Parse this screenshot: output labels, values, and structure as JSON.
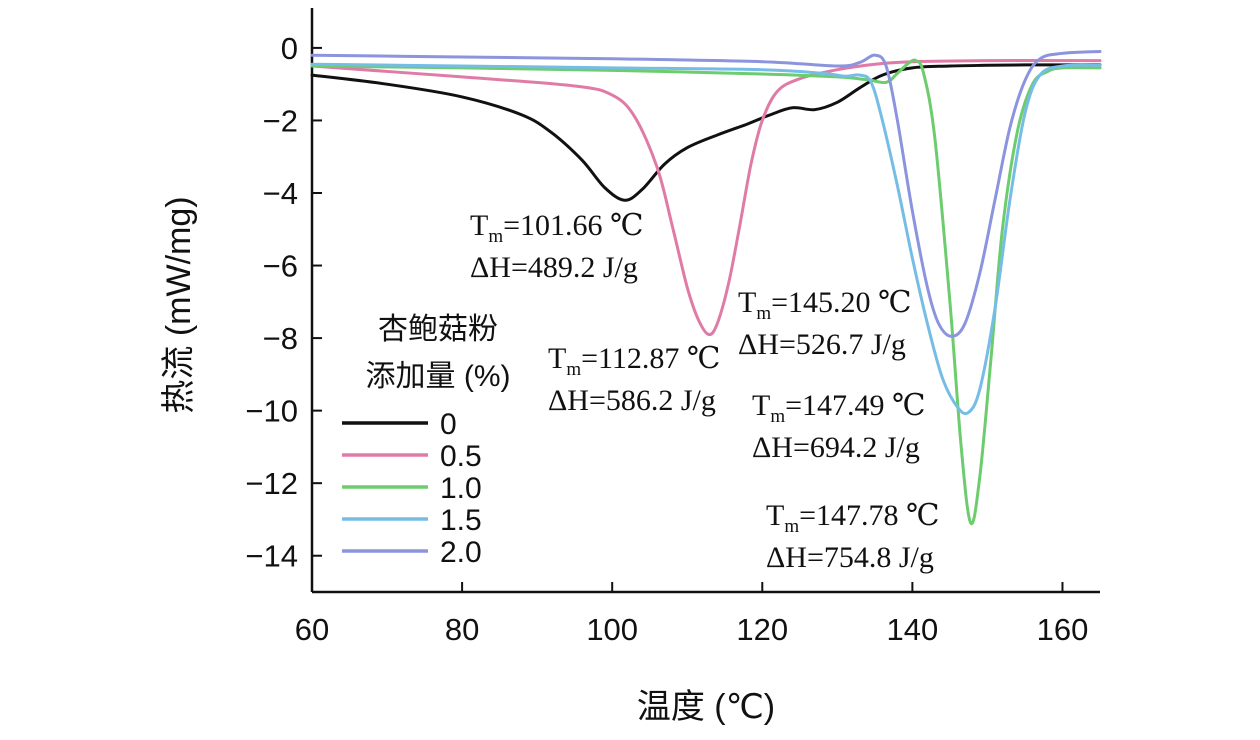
{
  "chart_data": {
    "type": "line",
    "title": "",
    "xlabel": "温度 (℃)",
    "ylabel": "热流 (mW/mg)",
    "xlim": [
      60,
      165
    ],
    "ylim": [
      -15,
      1.1
    ],
    "xticks": [
      60,
      80,
      100,
      120,
      140,
      160
    ],
    "yticks": [
      0,
      -2,
      -4,
      -6,
      -8,
      -10,
      -12,
      -14
    ],
    "xtick_labels": [
      "60",
      "80",
      "100",
      "120",
      "140",
      "160"
    ],
    "ytick_labels": [
      "0",
      "−2",
      "−4",
      "−6",
      "−8",
      "−10",
      "−12",
      "−14"
    ],
    "legend": {
      "title_line1": "杏鲍菇粉",
      "title_line2": "添加量 (%)",
      "placement": "left-center"
    },
    "series": [
      {
        "name": "0",
        "color": "#111111",
        "x": [
          60,
          70,
          80,
          88,
          92,
          96,
          99,
          101.66,
          104,
          107,
          110,
          114,
          118,
          121,
          124,
          127,
          130,
          133,
          136,
          140,
          145,
          150,
          155,
          160,
          165
        ],
        "y": [
          -0.75,
          -1.0,
          -1.35,
          -1.85,
          -2.35,
          -3.1,
          -3.85,
          -4.2,
          -3.9,
          -3.2,
          -2.75,
          -2.4,
          -2.1,
          -1.85,
          -1.65,
          -1.7,
          -1.5,
          -1.1,
          -0.75,
          -0.55,
          -0.5,
          -0.48,
          -0.47,
          -0.47,
          -0.47
        ],
        "Tm": "101.66 ℃",
        "dH": "489.2 J/g"
      },
      {
        "name": "0.5",
        "color": "#e07aa6",
        "x": [
          60,
          80,
          95,
          100,
          103,
          106,
          108,
          110,
          111.5,
          112.87,
          114,
          115.5,
          117,
          118.5,
          120,
          122,
          125,
          130,
          135,
          140,
          150,
          165
        ],
        "y": [
          -0.5,
          -0.8,
          -1.05,
          -1.3,
          -1.9,
          -3.3,
          -4.9,
          -6.6,
          -7.5,
          -7.9,
          -7.6,
          -6.5,
          -4.9,
          -3.2,
          -2.0,
          -1.2,
          -0.85,
          -0.6,
          -0.45,
          -0.38,
          -0.35,
          -0.35
        ],
        "Tm": "112.87 ℃",
        "dH": "586.2 J/g"
      },
      {
        "name": "1.0",
        "color": "#6dcc6d",
        "x": [
          60,
          80,
          100,
          120,
          130,
          134,
          136.5,
          138,
          139.5,
          140.5,
          141.5,
          143,
          145,
          146.5,
          147.78,
          149,
          150.5,
          152,
          154,
          156,
          158,
          160,
          165
        ],
        "y": [
          -0.5,
          -0.55,
          -0.62,
          -0.72,
          -0.8,
          -0.88,
          -0.95,
          -0.7,
          -0.42,
          -0.35,
          -0.7,
          -2.5,
          -7.0,
          -11.0,
          -13.1,
          -11.8,
          -8.5,
          -5.0,
          -2.3,
          -1.0,
          -0.65,
          -0.55,
          -0.55
        ],
        "Tm": "147.78 ℃",
        "dH": "754.8 J/g"
      },
      {
        "name": "1.5",
        "color": "#76bde6",
        "x": [
          60,
          80,
          100,
          120,
          128,
          131,
          133,
          134.5,
          136,
          138,
          140,
          142,
          144,
          146,
          147.49,
          149,
          151,
          153,
          155,
          157,
          160,
          165
        ],
        "y": [
          -0.45,
          -0.5,
          -0.55,
          -0.6,
          -0.7,
          -0.78,
          -0.75,
          -0.95,
          -2.0,
          -3.8,
          -5.8,
          -7.6,
          -9.1,
          -9.9,
          -10.05,
          -9.4,
          -7.2,
          -4.2,
          -1.8,
          -0.75,
          -0.5,
          -0.48
        ],
        "Tm": "147.49 ℃",
        "dH": "694.2 J/g"
      },
      {
        "name": "2.0",
        "color": "#8b94dd",
        "x": [
          60,
          80,
          100,
          120,
          130,
          133,
          135,
          136.5,
          138,
          140,
          142,
          143.5,
          145.2,
          147,
          149,
          151,
          153,
          155,
          157,
          160,
          165
        ],
        "y": [
          -0.2,
          -0.25,
          -0.3,
          -0.38,
          -0.5,
          -0.4,
          -0.2,
          -0.5,
          -2.0,
          -4.5,
          -6.6,
          -7.6,
          -7.95,
          -7.6,
          -6.2,
          -4.2,
          -2.2,
          -0.9,
          -0.3,
          -0.15,
          -0.1
        ],
        "Tm": "145.20 ℃",
        "dH": "526.7 J/g"
      }
    ]
  }
}
